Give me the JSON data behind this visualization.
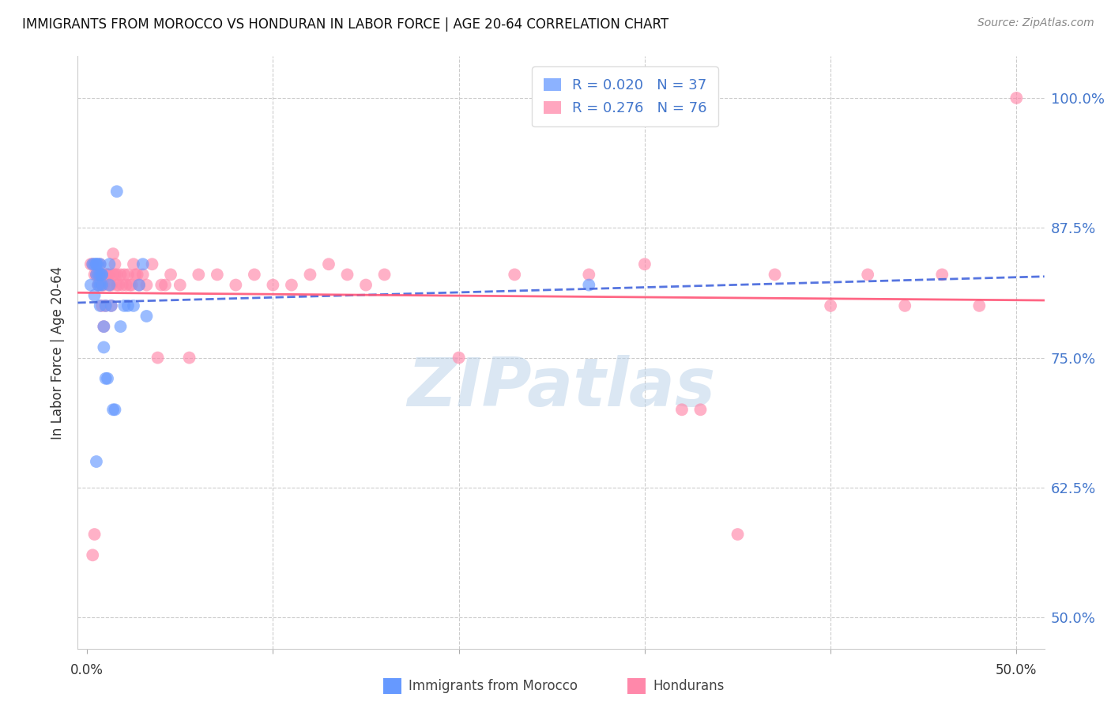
{
  "title": "IMMIGRANTS FROM MOROCCO VS HONDURAN IN LABOR FORCE | AGE 20-64 CORRELATION CHART",
  "source": "Source: ZipAtlas.com",
  "ylabel": "In Labor Force | Age 20-64",
  "ytick_labels": [
    "100.0%",
    "87.5%",
    "75.0%",
    "62.5%",
    "50.0%"
  ],
  "ytick_values": [
    1.0,
    0.875,
    0.75,
    0.625,
    0.5
  ],
  "xlim": [
    -0.005,
    0.515
  ],
  "ylim": [
    0.47,
    1.04
  ],
  "morocco_R": "0.020",
  "morocco_N": "37",
  "honduran_R": "0.276",
  "honduran_N": "76",
  "morocco_color": "#6699ff",
  "honduran_color": "#ff88aa",
  "morocco_line_color": "#4466dd",
  "honduran_line_color": "#ff5577",
  "watermark_color": "#b8d0e8",
  "grid_color": "#cccccc",
  "title_color": "#111111",
  "source_color": "#888888",
  "ytick_color": "#4477cc",
  "xtick_color": "#333333",
  "morocco_x": [
    0.002,
    0.003,
    0.004,
    0.004,
    0.005,
    0.005,
    0.005,
    0.006,
    0.006,
    0.006,
    0.007,
    0.007,
    0.007,
    0.007,
    0.008,
    0.008,
    0.008,
    0.009,
    0.009,
    0.01,
    0.01,
    0.011,
    0.012,
    0.012,
    0.013,
    0.014,
    0.015,
    0.016,
    0.018,
    0.02,
    0.022,
    0.025,
    0.028,
    0.03,
    0.032,
    0.27,
    0.005
  ],
  "morocco_y": [
    0.82,
    0.84,
    0.84,
    0.81,
    0.84,
    0.84,
    0.83,
    0.84,
    0.83,
    0.82,
    0.84,
    0.83,
    0.82,
    0.8,
    0.83,
    0.83,
    0.82,
    0.78,
    0.76,
    0.8,
    0.73,
    0.73,
    0.84,
    0.82,
    0.8,
    0.7,
    0.7,
    0.91,
    0.78,
    0.8,
    0.8,
    0.8,
    0.82,
    0.84,
    0.79,
    0.82,
    0.65
  ],
  "honduran_x": [
    0.002,
    0.003,
    0.004,
    0.005,
    0.005,
    0.006,
    0.006,
    0.007,
    0.007,
    0.008,
    0.008,
    0.008,
    0.009,
    0.009,
    0.01,
    0.01,
    0.011,
    0.011,
    0.012,
    0.012,
    0.013,
    0.013,
    0.014,
    0.014,
    0.015,
    0.015,
    0.016,
    0.016,
    0.017,
    0.018,
    0.019,
    0.02,
    0.021,
    0.022,
    0.023,
    0.024,
    0.025,
    0.026,
    0.027,
    0.028,
    0.03,
    0.032,
    0.035,
    0.038,
    0.04,
    0.042,
    0.045,
    0.05,
    0.055,
    0.06,
    0.07,
    0.08,
    0.09,
    0.1,
    0.11,
    0.12,
    0.13,
    0.14,
    0.15,
    0.16,
    0.2,
    0.23,
    0.27,
    0.3,
    0.33,
    0.37,
    0.4,
    0.42,
    0.44,
    0.46,
    0.48,
    0.5,
    0.32,
    0.35,
    0.003,
    0.004
  ],
  "honduran_y": [
    0.84,
    0.84,
    0.83,
    0.83,
    0.83,
    0.83,
    0.82,
    0.84,
    0.83,
    0.83,
    0.82,
    0.8,
    0.82,
    0.78,
    0.83,
    0.8,
    0.83,
    0.83,
    0.83,
    0.82,
    0.82,
    0.8,
    0.85,
    0.83,
    0.84,
    0.83,
    0.82,
    0.83,
    0.82,
    0.83,
    0.82,
    0.83,
    0.82,
    0.83,
    0.82,
    0.82,
    0.84,
    0.83,
    0.83,
    0.82,
    0.83,
    0.82,
    0.84,
    0.75,
    0.82,
    0.82,
    0.83,
    0.82,
    0.75,
    0.83,
    0.83,
    0.82,
    0.83,
    0.82,
    0.82,
    0.83,
    0.84,
    0.83,
    0.82,
    0.83,
    0.75,
    0.83,
    0.83,
    0.84,
    0.7,
    0.83,
    0.8,
    0.83,
    0.8,
    0.83,
    0.8,
    1.0,
    0.7,
    0.58,
    0.56,
    0.58
  ]
}
